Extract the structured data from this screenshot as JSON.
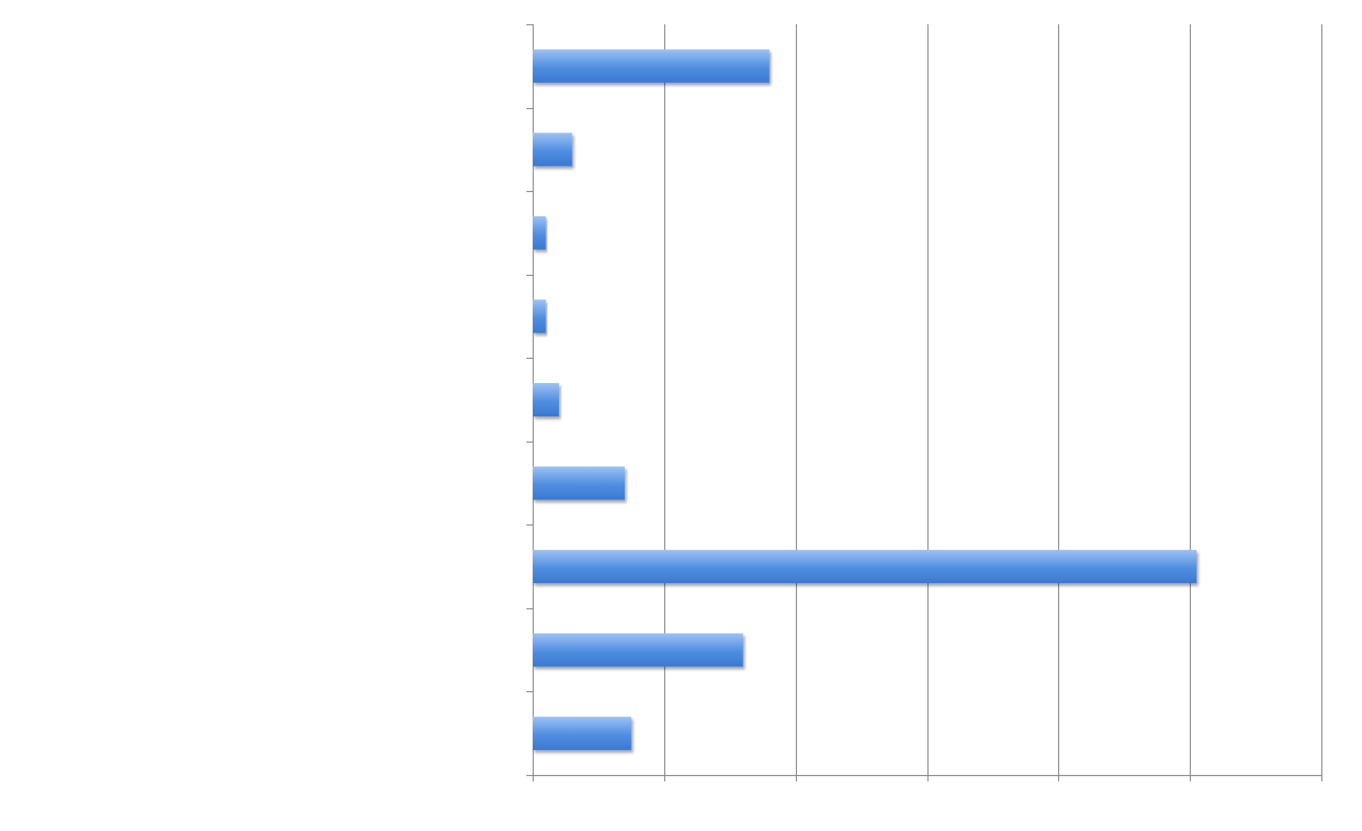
{
  "chart_data": {
    "type": "bar",
    "orientation": "horizontal",
    "categories": [
      "",
      "",
      "",
      "",
      "",
      "",
      "",
      "",
      ""
    ],
    "values": [
      18,
      3,
      1,
      1,
      2,
      7,
      50.5,
      16,
      7.5
    ],
    "xlim": [
      0,
      60
    ],
    "grid": true,
    "title": "",
    "xlabel": "",
    "ylabel": "",
    "bar_color": "#4f8ee0",
    "bar_color_light": "#9cc2f5",
    "bar_color_dark": "#3b78d1",
    "axis_color": "#868686"
  }
}
